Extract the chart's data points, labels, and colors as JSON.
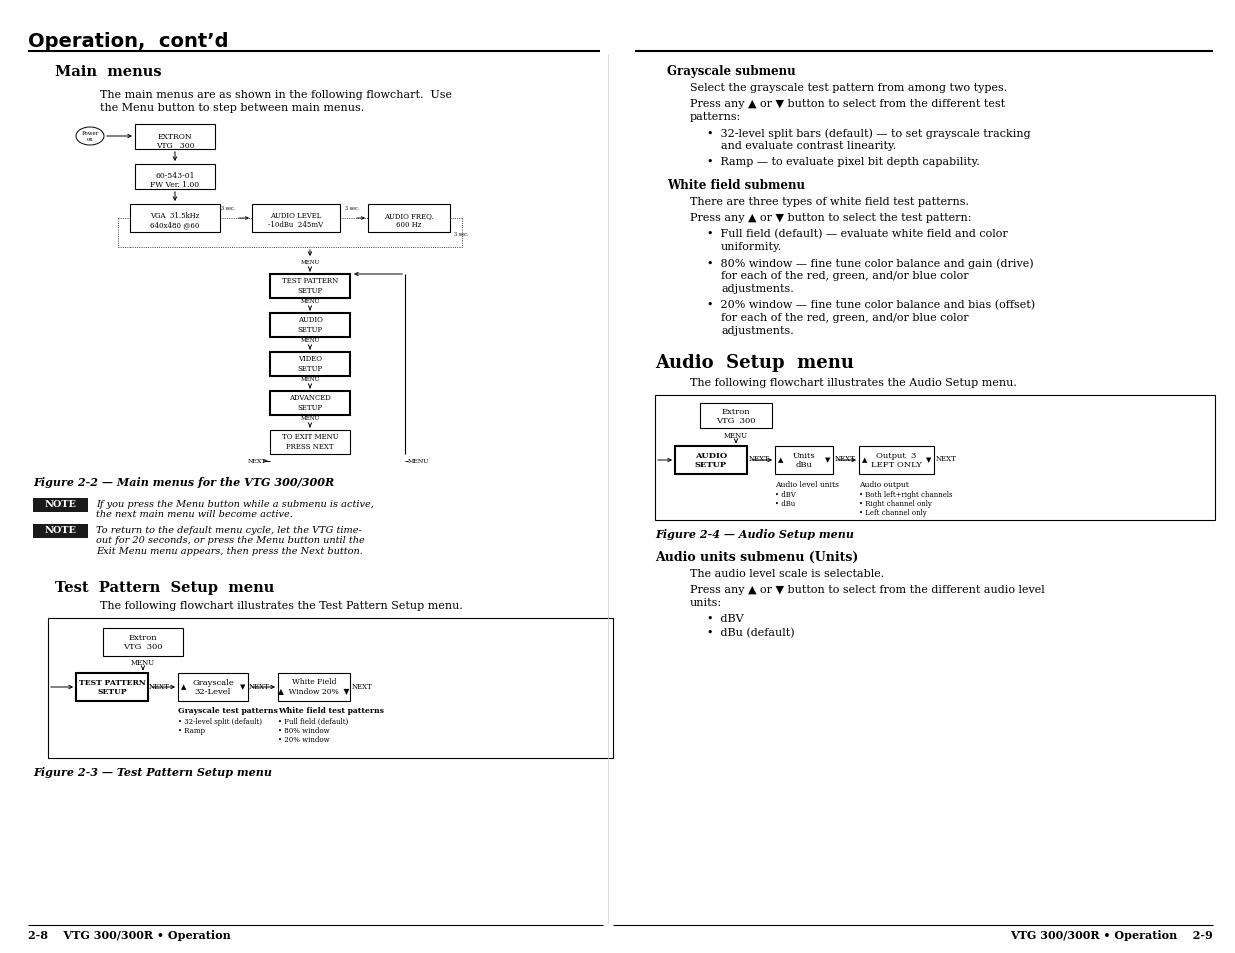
{
  "page_bg": "#ffffff",
  "header_text": "Operation,  cont’d",
  "footer_left": "2-8    VTG 300/300R • Operation",
  "footer_right": "VTG 300/300R • Operation    2-9"
}
